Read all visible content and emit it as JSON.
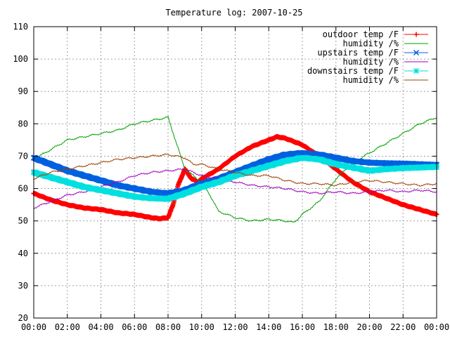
{
  "chart_data": {
    "type": "line",
    "title": "Temperature log: 2007-10-25",
    "xlabel": "",
    "ylabel": "",
    "x_ticks": [
      "00:00",
      "02:00",
      "04:00",
      "06:00",
      "08:00",
      "10:00",
      "12:00",
      "14:00",
      "16:00",
      "18:00",
      "20:00",
      "22:00",
      "00:00"
    ],
    "x_range_hours": [
      0,
      24
    ],
    "y_ticks": [
      20,
      30,
      40,
      50,
      60,
      70,
      80,
      90,
      100,
      110
    ],
    "ylim": [
      20,
      110
    ],
    "grid": true,
    "legend_position": "top-right",
    "series": [
      {
        "name": "outdoor temp /F",
        "color": "#ff0000",
        "marker": "plus",
        "x": [
          0,
          1,
          2,
          3,
          4,
          5,
          6,
          7,
          7.5,
          8,
          8.3,
          8.6,
          9,
          9.4,
          9.8,
          10,
          11,
          12,
          13,
          14,
          14.5,
          15,
          16,
          17,
          18,
          19,
          20,
          21,
          22,
          23,
          24
        ],
        "y": [
          58.5,
          56.5,
          55,
          54,
          53.5,
          52.5,
          52,
          51,
          50.7,
          51,
          55,
          61,
          66,
          63,
          62,
          63,
          66,
          70,
          73,
          75,
          76,
          75.5,
          73.5,
          70,
          66,
          62,
          59,
          57,
          55,
          53.5,
          52
        ]
      },
      {
        "name": "humidity /%",
        "color": "#00a000",
        "marker": "none",
        "x": [
          0,
          1,
          2,
          3,
          4,
          5,
          6,
          7,
          8,
          9,
          10,
          10.5,
          11,
          12,
          13,
          14,
          15,
          15.5,
          16,
          17,
          18,
          19,
          20,
          21,
          22,
          23,
          24
        ],
        "y": [
          69,
          72,
          75,
          76,
          77,
          78,
          80,
          81,
          82,
          66,
          62,
          58,
          53,
          51,
          50,
          50.5,
          50,
          49.5,
          52,
          56,
          63,
          68,
          71,
          74,
          77,
          80,
          82
        ]
      },
      {
        "name": "upstairs temp /F",
        "color": "#0060e0",
        "marker": "cross",
        "x": [
          0,
          1,
          2,
          3,
          4,
          5,
          6,
          7,
          8,
          9,
          10,
          11,
          12,
          13,
          14,
          15,
          16,
          17,
          18,
          19,
          20,
          21,
          22,
          23,
          24
        ],
        "y": [
          69.5,
          67.5,
          65.5,
          64,
          62.5,
          61,
          60,
          59,
          58.5,
          59.5,
          61.5,
          63,
          65,
          67,
          69,
          70.5,
          71,
          70.5,
          69.5,
          68.5,
          68,
          67.8,
          67.7,
          67.5,
          67.3
        ]
      },
      {
        "name": "humidity /%",
        "color": "#a000c0",
        "marker": "none",
        "x": [
          0,
          1,
          2,
          3,
          4,
          5,
          6,
          7,
          8,
          9,
          10,
          11,
          12,
          13,
          14,
          15,
          16,
          17,
          18,
          19,
          20,
          21,
          22,
          23,
          24
        ],
        "y": [
          54,
          56,
          58,
          59,
          60.5,
          62,
          64,
          65,
          65.5,
          66,
          64,
          63,
          62,
          61,
          60.5,
          60,
          59,
          58.5,
          59,
          58.5,
          59,
          59.5,
          59,
          59.5,
          59
        ]
      },
      {
        "name": "downstairs temp /F",
        "color": "#00e0e0",
        "marker": "star",
        "x": [
          0,
          1,
          2,
          3,
          4,
          5,
          6,
          7,
          8,
          9,
          10,
          11,
          12,
          13,
          14,
          15,
          16,
          17,
          18,
          19,
          20,
          21,
          22,
          23,
          24
        ],
        "y": [
          65,
          63.5,
          62,
          60.5,
          59.5,
          58.5,
          57.5,
          57,
          56.8,
          58.5,
          60.5,
          62,
          64,
          65.5,
          67,
          68.5,
          69.5,
          69,
          67.5,
          66.5,
          65.5,
          66,
          66.3,
          66.5,
          66.7
        ]
      },
      {
        "name": "humidity /%",
        "color": "#a04000",
        "marker": "none",
        "x": [
          0,
          1,
          2,
          3,
          4,
          5,
          6,
          7,
          8,
          9,
          9.5,
          10,
          11,
          12,
          13,
          14,
          15,
          16,
          17,
          18,
          19,
          20,
          21,
          22,
          23,
          24
        ],
        "y": [
          63,
          65,
          66,
          67,
          68,
          69,
          69.5,
          70,
          70.5,
          69.5,
          67.5,
          67.5,
          66,
          65,
          64,
          64,
          62.5,
          61.5,
          61.5,
          61,
          62,
          62.5,
          62,
          61.5,
          61,
          61.5
        ]
      }
    ]
  }
}
